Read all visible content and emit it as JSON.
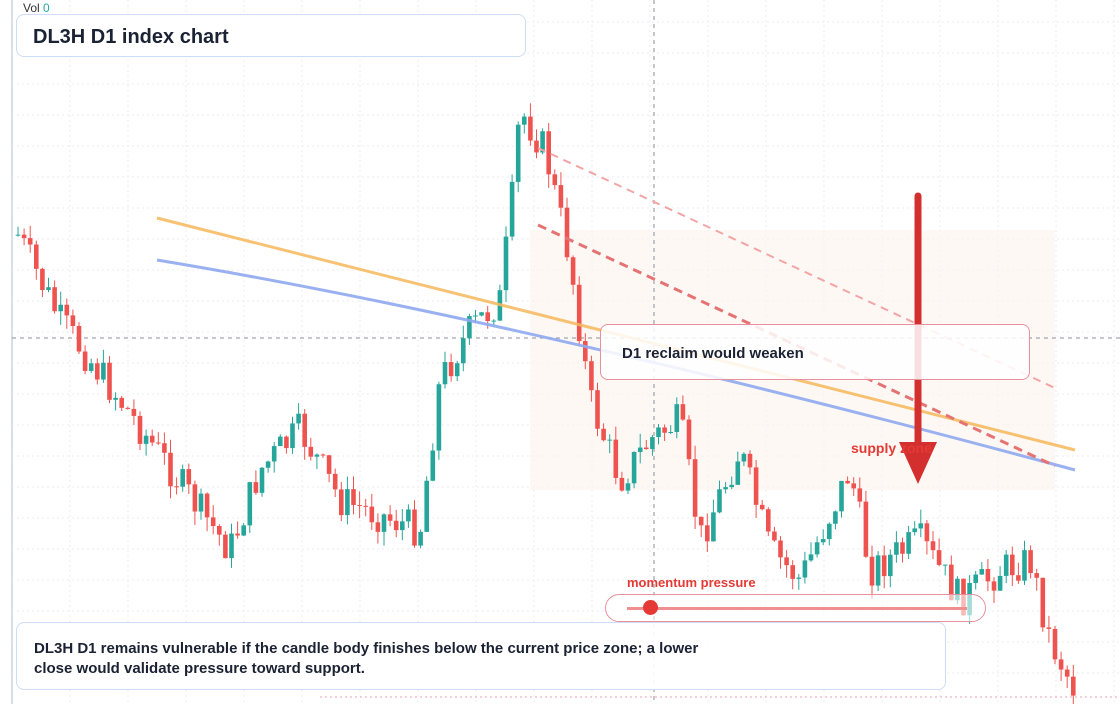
{
  "header": {
    "volume_label": "Vol",
    "volume_value": "0",
    "title": "DL3H D1 index chart"
  },
  "annotations": {
    "callout": "D1 reclaim would weaken",
    "zone": "supply zone",
    "gauge": "momentum pressure"
  },
  "note": "DL3H D1 remains vulnerable if the candle body finishes below the current price zone; a lower close would validate pressure toward support."
}
